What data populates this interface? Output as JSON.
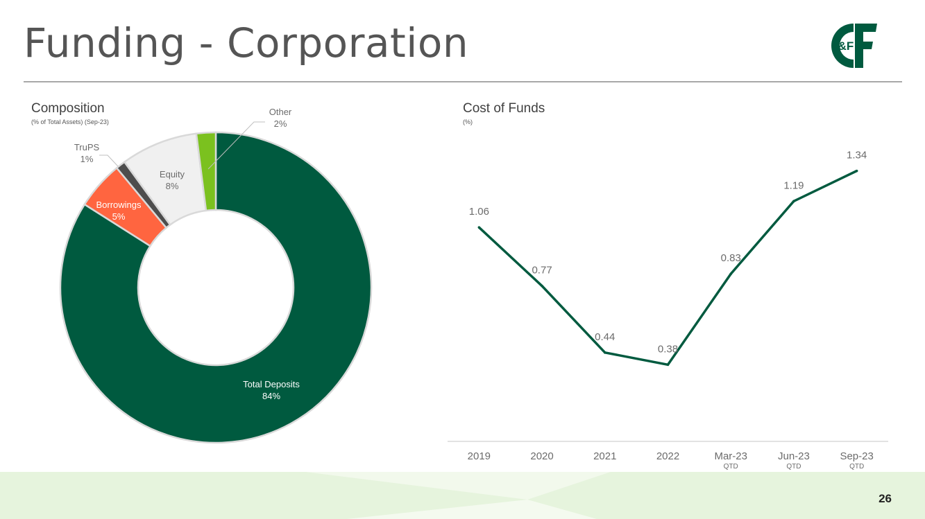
{
  "slide": {
    "title": "Funding - Corporation",
    "page_number": "26",
    "logo_text": "&F"
  },
  "colors": {
    "dark_green": "#005A3F",
    "coral": "#FF6540",
    "dark_gray": "#4D4D4D",
    "light_gray": "#F0F0F0",
    "lime": "#7BC11F",
    "footer_green": "#E6F4DD"
  },
  "chart_data": [
    {
      "type": "pie",
      "title": "Composition",
      "subtitle": "(% of Total Assets) (Sep-23)",
      "slices": [
        {
          "label": "Total Deposits",
          "value": 84,
          "value_label": "84%",
          "color": "#005A3F",
          "label_color": "#ffffff"
        },
        {
          "label": "Borrowings",
          "value": 5,
          "value_label": "5%",
          "color": "#FF6540",
          "label_color": "#ffffff"
        },
        {
          "label": "TruPS",
          "value": 1,
          "value_label": "1%",
          "color": "#4D4D4D",
          "label_color": "#6b6b6b"
        },
        {
          "label": "Equity",
          "value": 8,
          "value_label": "8%",
          "color": "#F0F0F0",
          "label_color": "#6b6b6b"
        },
        {
          "label": "Other",
          "value": 2,
          "value_label": "2%",
          "color": "#7BC11F",
          "label_color": "#6b6b6b"
        }
      ]
    },
    {
      "type": "line",
      "title": "Cost of Funds",
      "subtitle": "(%)",
      "categories": [
        "2019",
        "2020",
        "2021",
        "2022",
        "Mar-23",
        "Jun-23",
        "Sep-23"
      ],
      "category_sublabels": [
        "",
        "",
        "",
        "",
        "QTD",
        "QTD",
        "QTD"
      ],
      "values": [
        1.06,
        0.77,
        0.44,
        0.38,
        0.83,
        1.19,
        1.34
      ],
      "value_labels": [
        "1.06",
        "0.77",
        "0.44",
        "0.38",
        "0.83",
        "1.19",
        "1.34"
      ],
      "ylim": [
        0,
        1.5
      ],
      "color": "#005A3F"
    }
  ]
}
